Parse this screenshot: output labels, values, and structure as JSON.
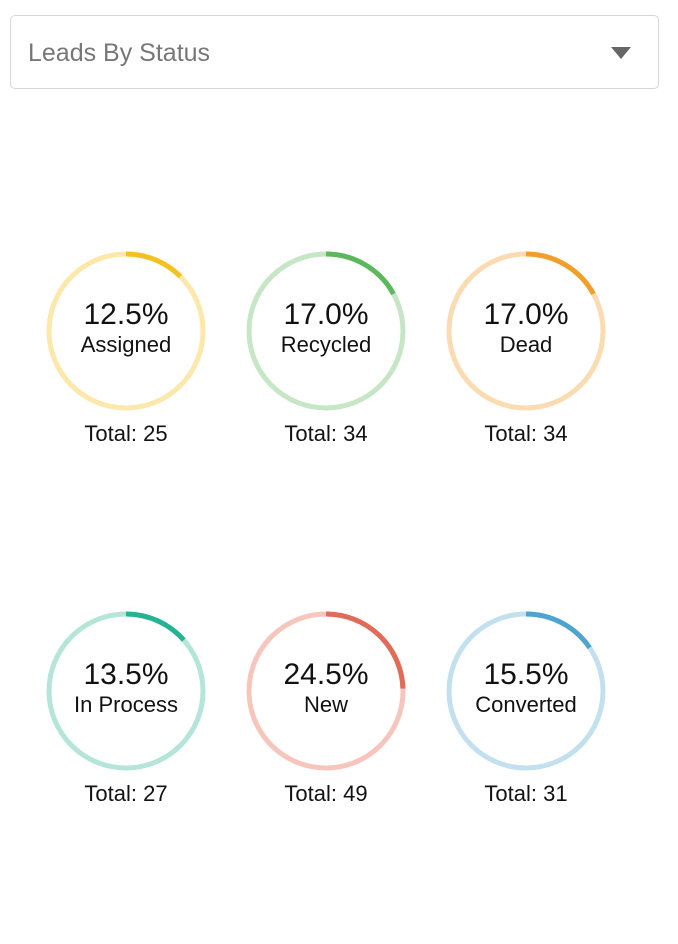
{
  "widget": {
    "title": "Leads By Status",
    "dropdown_icon": "caret-down-icon"
  },
  "statuses": [
    {
      "key": "assigned",
      "percent_label": "12.5%",
      "percent": 12.5,
      "label": "Assigned",
      "total_label": "Total: 25",
      "total": 25,
      "color": "#f5c121",
      "track_color": "#fce8aa"
    },
    {
      "key": "recycled",
      "percent_label": "17.0%",
      "percent": 17.0,
      "label": "Recycled",
      "total_label": "Total: 34",
      "total": 34,
      "color": "#5cb85c",
      "track_color": "#c7e6c5"
    },
    {
      "key": "dead",
      "percent_label": "17.0%",
      "percent": 17.0,
      "label": "Dead",
      "total_label": "Total: 34",
      "total": 34,
      "color": "#f0a02a",
      "track_color": "#fbdcb2"
    },
    {
      "key": "in-process",
      "percent_label": "13.5%",
      "percent": 13.5,
      "label": "In Process",
      "total_label": "Total: 27",
      "total": 27,
      "color": "#26b394",
      "track_color": "#b4e5d8"
    },
    {
      "key": "new",
      "percent_label": "24.5%",
      "percent": 24.5,
      "label": "New",
      "total_label": "Total: 49",
      "total": 49,
      "color": "#e06b57",
      "track_color": "#f6c6bd"
    },
    {
      "key": "converted",
      "percent_label": "15.5%",
      "percent": 15.5,
      "label": "Converted",
      "total_label": "Total: 31",
      "total": 31,
      "color": "#4fa3d1",
      "track_color": "#c3e0ef"
    }
  ]
}
